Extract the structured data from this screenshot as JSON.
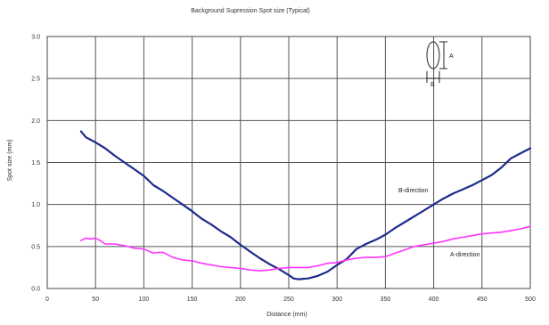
{
  "chart_data": {
    "type": "line",
    "title": "Background Supression Spot size (Typical)",
    "xlabel": "Distance (mm)",
    "ylabel": "Spot size (mm)",
    "xlim": [
      0,
      500
    ],
    "ylim": [
      0,
      3.0
    ],
    "x_ticks": [
      "0",
      "50",
      "100",
      "150",
      "200",
      "250",
      "300",
      "350",
      "400",
      "450",
      "500"
    ],
    "y_ticks": [
      "0.0",
      "0.5",
      "1.0",
      "1.5",
      "2.0",
      "2.5",
      "3.0"
    ],
    "grid": true,
    "series": [
      {
        "name": "B-direction",
        "color": "#1f2a8c",
        "x": [
          35,
          40,
          50,
          60,
          70,
          80,
          90,
          100,
          110,
          120,
          130,
          140,
          150,
          160,
          170,
          180,
          190,
          200,
          210,
          220,
          230,
          240,
          250,
          255,
          260,
          270,
          280,
          290,
          300,
          310,
          320,
          330,
          340,
          350,
          360,
          370,
          380,
          390,
          400,
          410,
          420,
          430,
          440,
          450,
          460,
          470,
          480,
          490,
          500
        ],
        "y": [
          1.87,
          1.8,
          1.74,
          1.67,
          1.58,
          1.5,
          1.42,
          1.34,
          1.23,
          1.16,
          1.08,
          1.0,
          0.92,
          0.83,
          0.76,
          0.68,
          0.61,
          0.52,
          0.44,
          0.36,
          0.29,
          0.23,
          0.16,
          0.12,
          0.11,
          0.12,
          0.15,
          0.2,
          0.28,
          0.35,
          0.47,
          0.53,
          0.58,
          0.64,
          0.72,
          0.79,
          0.86,
          0.93,
          1.0,
          1.07,
          1.13,
          1.18,
          1.23,
          1.29,
          1.35,
          1.44,
          1.55,
          1.61,
          1.67
        ]
      },
      {
        "name": "A-direction",
        "color": "#ff33ff",
        "x": [
          35,
          40,
          45,
          50,
          55,
          60,
          70,
          80,
          90,
          100,
          110,
          115,
          120,
          130,
          140,
          150,
          160,
          170,
          180,
          190,
          200,
          210,
          220,
          230,
          240,
          250,
          260,
          270,
          280,
          290,
          300,
          310,
          320,
          330,
          340,
          350,
          360,
          370,
          380,
          390,
          400,
          410,
          420,
          430,
          440,
          450,
          460,
          470,
          480,
          490,
          500
        ],
        "y": [
          0.57,
          0.6,
          0.59,
          0.6,
          0.57,
          0.53,
          0.53,
          0.51,
          0.48,
          0.47,
          0.42,
          0.43,
          0.43,
          0.37,
          0.34,
          0.33,
          0.3,
          0.28,
          0.26,
          0.25,
          0.24,
          0.22,
          0.21,
          0.22,
          0.24,
          0.25,
          0.25,
          0.25,
          0.27,
          0.3,
          0.31,
          0.34,
          0.36,
          0.37,
          0.37,
          0.38,
          0.42,
          0.46,
          0.5,
          0.52,
          0.54,
          0.56,
          0.59,
          0.61,
          0.63,
          0.65,
          0.66,
          0.67,
          0.69,
          0.71,
          0.74
        ]
      }
    ],
    "annotations": [
      "B-direction",
      "A-direction"
    ],
    "inset_labels": {
      "a": "A",
      "b": "B"
    }
  }
}
